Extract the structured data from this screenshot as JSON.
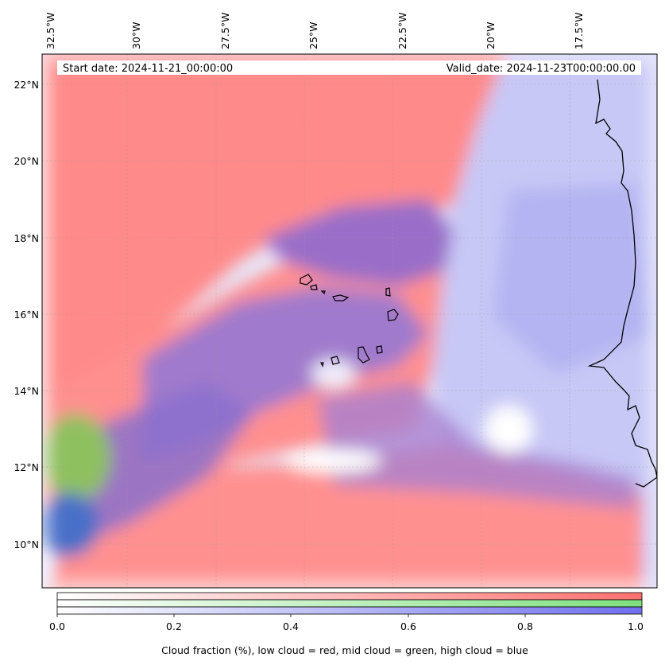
{
  "header": {
    "start_date": "Start date: 2024-11-21_00:00:00",
    "valid_date": "Valid_date: 2024-11-23T00:00:00.00"
  },
  "map": {
    "projection": "lat-lon",
    "lon_range": [
      -33.5,
      -15.0
    ],
    "lat_range": [
      8.8,
      22.8
    ],
    "lon_tick_labels": [
      "32.5°W",
      "30°W",
      "27.5°W",
      "25°W",
      "22.5°W",
      "20°W",
      "17.5°W"
    ],
    "lon_ticks": [
      -32.5,
      -30,
      -27.5,
      -25,
      -22.5,
      -20,
      -17.5
    ],
    "lat_tick_labels": [
      "22°N",
      "20°N",
      "18°N",
      "16°N",
      "14°N",
      "12°N",
      "10°N"
    ],
    "lat_ticks": [
      22,
      20,
      18,
      16,
      14,
      12,
      10
    ],
    "gridlines": true,
    "field": "Cloud fraction (low=red, mid=green, high=blue)",
    "colors": {
      "low_cloud": "#ff8080",
      "mid_cloud": "#90e870",
      "high_cloud": "#8080f0",
      "overlap": "#9a6ec8",
      "coastline": "#000000"
    }
  },
  "colorbar": {
    "ticks": [
      "0.0",
      "0.2",
      "0.4",
      "0.6",
      "0.8",
      "1.0"
    ],
    "tick_values": [
      0.0,
      0.2,
      0.4,
      0.6,
      0.8,
      1.0
    ],
    "label": "Cloud fraction (%), low cloud = red, mid cloud = green, high cloud = blue",
    "bars": [
      {
        "name": "low",
        "color_start": "#ffffff",
        "color_end": "#ff7070"
      },
      {
        "name": "mid",
        "color_start": "#ffffff",
        "color_end": "#7ee07e"
      },
      {
        "name": "high",
        "color_start": "#ffffff",
        "color_end": "#7070ee"
      }
    ]
  }
}
